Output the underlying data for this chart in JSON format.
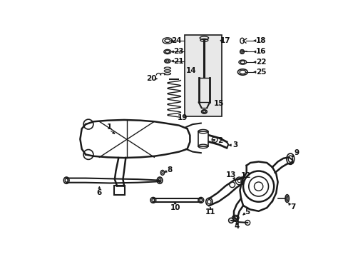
{
  "background_color": "#ffffff",
  "fig_width": 4.89,
  "fig_height": 3.6,
  "dpi": 100,
  "line_color": "#1a1a1a",
  "text_color": "#111111",
  "font_size": 7.5
}
